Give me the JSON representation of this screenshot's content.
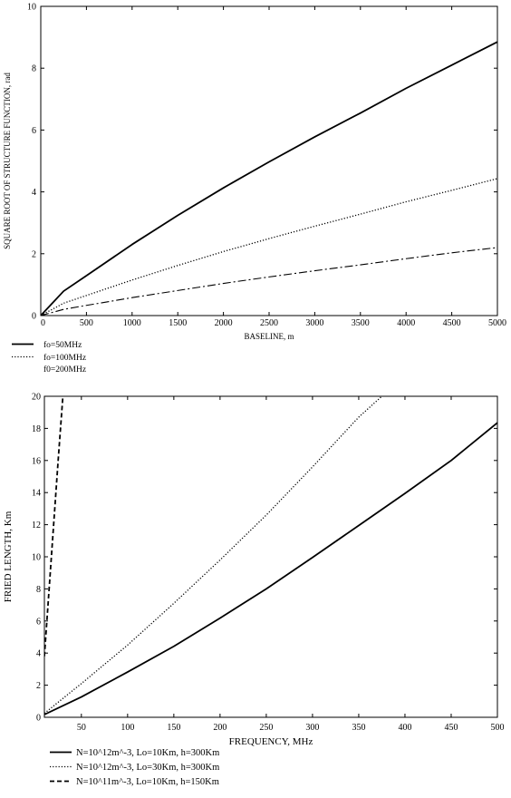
{
  "chart_data": [
    {
      "type": "line",
      "title": "",
      "xlabel": "BASELINE, m",
      "ylabel": "SQUARE ROOT OF STRUCTURE FUNCTION, rad",
      "xlim": [
        0,
        5000
      ],
      "ylim": [
        0,
        10
      ],
      "x_ticks": [
        0,
        500,
        1000,
        1500,
        2000,
        2500,
        3000,
        3500,
        4000,
        4500,
        5000
      ],
      "y_ticks": [
        0,
        2,
        4,
        6,
        8,
        10
      ],
      "grid": false,
      "legend_position": "bottom-left",
      "x": [
        0,
        250,
        500,
        1000,
        1500,
        2000,
        2500,
        3000,
        3500,
        4000,
        4500,
        5000
      ],
      "series": [
        {
          "name": "fo=50MHz",
          "style": "solid",
          "values": [
            0,
            0.79,
            1.29,
            2.3,
            3.24,
            4.13,
            4.97,
            5.78,
            6.55,
            7.35,
            8.1,
            8.85
          ]
        },
        {
          "name": "fo=100MHz",
          "style": "dotted",
          "values": [
            0,
            0.4,
            0.65,
            1.15,
            1.62,
            2.07,
            2.49,
            2.89,
            3.28,
            3.68,
            4.05,
            4.43
          ]
        },
        {
          "name": "f0=200MHz",
          "style": "dashdot",
          "values": [
            0,
            0.2,
            0.33,
            0.58,
            0.81,
            1.04,
            1.25,
            1.45,
            1.64,
            1.84,
            2.03,
            2.2
          ]
        }
      ]
    },
    {
      "type": "line",
      "title": "",
      "xlabel": "FREQUENCY,  MHz",
      "ylabel": "FRIED LENGTH, Km",
      "xlim": [
        10,
        500
      ],
      "ylim": [
        0,
        20
      ],
      "x_ticks": [
        50,
        100,
        150,
        200,
        250,
        300,
        350,
        400,
        450,
        500
      ],
      "y_ticks": [
        0,
        2,
        4,
        6,
        8,
        10,
        12,
        14,
        16,
        18,
        20
      ],
      "grid": false,
      "legend_position": "bottom-left",
      "series": [
        {
          "name": "N=10^12m^-3, Lo=10Km, h=300Km",
          "style": "solid",
          "x": [
            10,
            50,
            100,
            150,
            200,
            250,
            300,
            350,
            400,
            450,
            500
          ],
          "values": [
            0.17,
            1.27,
            2.82,
            4.42,
            6.18,
            8.0,
            9.96,
            11.95,
            13.95,
            16.0,
            18.35
          ]
        },
        {
          "name": "N=10^12m^-3, Lo=30Km, h=300Km",
          "style": "dotted",
          "x": [
            10,
            50,
            100,
            150,
            200,
            250,
            300,
            350,
            375
          ],
          "values": [
            0.25,
            2.1,
            4.5,
            7.1,
            9.8,
            12.6,
            15.6,
            18.7,
            20.0
          ]
        },
        {
          "name": "N=10^11m^-3, Lo=10Km, h=150Km",
          "style": "dashed",
          "x": [
            10,
            15,
            20,
            25,
            30
          ],
          "values": [
            3.8,
            7.9,
            12.0,
            16.1,
            20.0
          ]
        }
      ]
    }
  ]
}
